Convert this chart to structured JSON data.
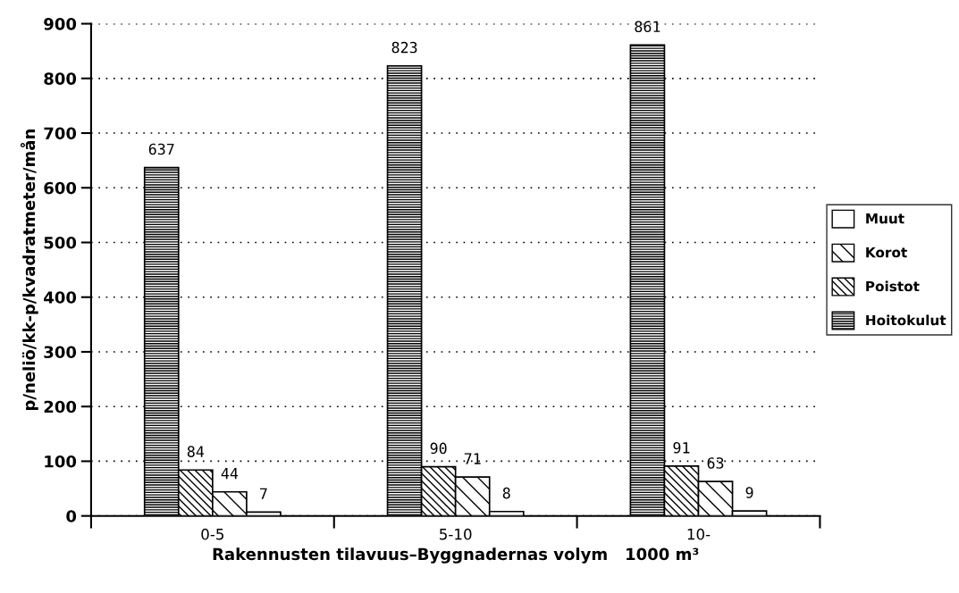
{
  "chart_data": {
    "type": "bar",
    "categories": [
      "0-5",
      "5-10",
      "10-"
    ],
    "series": [
      {
        "name": "Hoitokulut",
        "color": "#000000",
        "values": [
          637,
          823,
          861
        ]
      },
      {
        "name": "Poistot",
        "color": "#000000",
        "values": [
          84,
          90,
          91
        ]
      },
      {
        "name": "Korot",
        "color": "#000000",
        "values": [
          44,
          71,
          63
        ]
      },
      {
        "name": "Muut",
        "color": "#ffffff",
        "values": [
          7,
          8,
          9
        ]
      }
    ],
    "xlabel": "Rakennusten tilavuus–Byggnadernas volym   1000 m³",
    "ylabel": "p/neliö/kk-p/kvadratmeter/mån",
    "ylim": [
      0,
      900
    ],
    "yticks": [
      0,
      100,
      200,
      300,
      400,
      500,
      600,
      700,
      800,
      900
    ],
    "grid": "y",
    "legend": "right",
    "data_labels": true
  }
}
